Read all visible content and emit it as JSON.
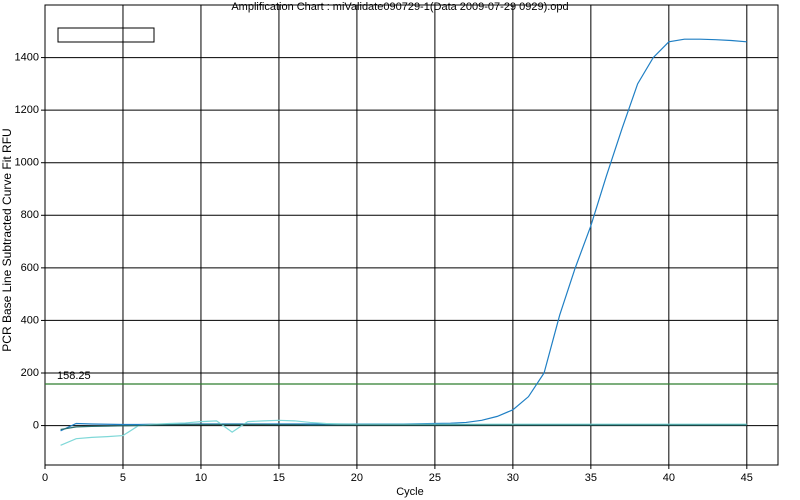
{
  "chart_data": {
    "type": "line",
    "title": "Amplification Chart : miValidate090729-1(Data 2009-07-29 0929).opd",
    "xlabel": "Cycle",
    "ylabel": "PCR Base Line Subtracted Curve Fit RFU",
    "x": [
      1,
      2,
      3,
      4,
      5,
      6,
      7,
      8,
      9,
      10,
      11,
      12,
      13,
      14,
      15,
      16,
      17,
      18,
      19,
      20,
      21,
      22,
      23,
      24,
      25,
      26,
      27,
      28,
      29,
      30,
      31,
      32,
      33,
      34,
      35,
      36,
      37,
      38,
      39,
      40,
      41,
      42,
      43,
      44,
      45
    ],
    "series": [
      {
        "color": "#1f7fc4",
        "values": [
          -20,
          8,
          6,
          5,
          4,
          4,
          5,
          5,
          5,
          6,
          6,
          6,
          6,
          6,
          6,
          6,
          6,
          6,
          6,
          6,
          6,
          6,
          6,
          7,
          8,
          9,
          12,
          20,
          35,
          60,
          110,
          200,
          420,
          600,
          760,
          950,
          1130,
          1300,
          1400,
          1460,
          1470,
          1470,
          1468,
          1465,
          1460
        ]
      },
      {
        "color": "#7fd8d8",
        "values": [
          -75,
          -50,
          -45,
          -42,
          -38,
          0,
          5,
          8,
          10,
          15,
          18,
          -25,
          15,
          18,
          20,
          18,
          12,
          8,
          6,
          5,
          5,
          5,
          5,
          5,
          5,
          5,
          5,
          5,
          5,
          5,
          5,
          5,
          5,
          5,
          5,
          5,
          5,
          5,
          5,
          5,
          5,
          5,
          5,
          5,
          5
        ]
      },
      {
        "color": "#2a6f6f",
        "values": [
          -15,
          -5,
          -3,
          -2,
          -1,
          0,
          2,
          3,
          4,
          4,
          4,
          4,
          4,
          4,
          3,
          3,
          2,
          2,
          2,
          2,
          2,
          2,
          2,
          2,
          2,
          2,
          2,
          2,
          2,
          2,
          2,
          2,
          2,
          2,
          2,
          2,
          2,
          2,
          2,
          2,
          2,
          2,
          2,
          2,
          2
        ]
      }
    ],
    "threshold": 158.25,
    "threshold_color": "#2e7d2e",
    "xlim": [
      0,
      47
    ],
    "ylim": [
      -150,
      1600
    ],
    "xticks": [
      0,
      5,
      10,
      15,
      20,
      25,
      30,
      35,
      40,
      45
    ],
    "yticks": [
      0,
      200,
      400,
      600,
      800,
      1000,
      1200,
      1400
    ],
    "grid": true
  }
}
